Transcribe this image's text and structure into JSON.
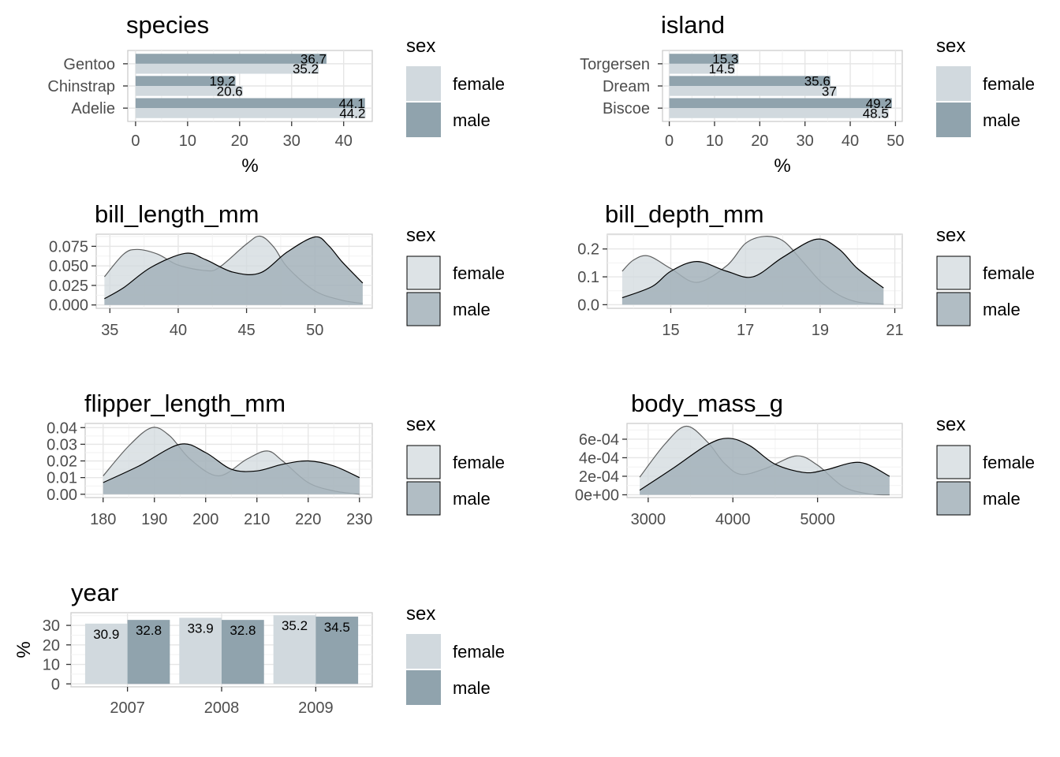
{
  "colors": {
    "female_fill": "#d1d9de",
    "male_fill": "#90a3ad",
    "density_fill": "#a3b2ba",
    "grid_major": "#e6e6e6",
    "grid_minor": "#f2f2f2",
    "panel_border": "#cccccc",
    "line": "#000000",
    "tick_text": "#4d4d4d"
  },
  "legend": {
    "title": "sex",
    "items": [
      "female",
      "male"
    ]
  },
  "chart_data": [
    {
      "id": "species",
      "type": "bar",
      "orientation": "horizontal",
      "title": "species",
      "xlabel": "%",
      "ylabel": "",
      "categories": [
        "Adelie",
        "Chinstrap",
        "Gentoo"
      ],
      "series": [
        {
          "name": "female",
          "values": [
            44.2,
            20.6,
            35.2
          ],
          "labels": [
            "44.2",
            "20.6",
            "35.2"
          ]
        },
        {
          "name": "male",
          "values": [
            44.1,
            19.2,
            36.7
          ],
          "labels": [
            "44.1",
            "19.2",
            "36.7"
          ]
        }
      ],
      "xlim": [
        -1.5,
        45.5
      ],
      "xticks": [
        0,
        10,
        20,
        30,
        40
      ],
      "xtick_labels": [
        "0",
        "10",
        "20",
        "30",
        "40"
      ],
      "grid": true,
      "legend_position": "right"
    },
    {
      "id": "island",
      "type": "bar",
      "orientation": "horizontal",
      "title": "island",
      "xlabel": "%",
      "ylabel": "",
      "categories": [
        "Biscoe",
        "Dream",
        "Torgersen"
      ],
      "series": [
        {
          "name": "female",
          "values": [
            48.5,
            37.0,
            14.5
          ],
          "labels": [
            "48.5",
            "37",
            "14.5"
          ]
        },
        {
          "name": "male",
          "values": [
            49.2,
            35.6,
            15.3
          ],
          "labels": [
            "49.2",
            "35.6",
            "15.3"
          ]
        }
      ],
      "xlim": [
        -1.5,
        51.5
      ],
      "xticks": [
        0,
        10,
        20,
        30,
        40,
        50
      ],
      "xtick_labels": [
        "0",
        "10",
        "20",
        "30",
        "40",
        "50"
      ],
      "grid": true,
      "legend_position": "right"
    },
    {
      "id": "bill_length_mm",
      "type": "area",
      "title": "bill_length_mm",
      "xlabel": "",
      "ylabel": "",
      "xlim": [
        34.0,
        54.2
      ],
      "ylim": [
        -0.0043,
        0.0905
      ],
      "xticks": [
        35,
        40,
        45,
        50
      ],
      "xtick_labels": [
        "35",
        "40",
        "45",
        "50"
      ],
      "yticks": [
        0,
        0.025,
        0.05,
        0.075
      ],
      "ytick_labels": [
        "0.000",
        "0.025",
        "0.050",
        "0.075"
      ],
      "series": [
        {
          "name": "female",
          "x": [
            34.6,
            36,
            37,
            38.5,
            40,
            42,
            43,
            45,
            46,
            47,
            48,
            50,
            52,
            53.5
          ],
          "y": [
            0.036,
            0.065,
            0.071,
            0.065,
            0.051,
            0.044,
            0.048,
            0.078,
            0.088,
            0.074,
            0.048,
            0.018,
            0.006,
            0.002
          ]
        },
        {
          "name": "male",
          "x": [
            34.6,
            36,
            38,
            40.5,
            42,
            44,
            46,
            48,
            50,
            51,
            52,
            53.5
          ],
          "y": [
            0.008,
            0.022,
            0.048,
            0.066,
            0.058,
            0.042,
            0.041,
            0.068,
            0.087,
            0.076,
            0.055,
            0.028
          ]
        }
      ],
      "grid": true,
      "legend_position": "right"
    },
    {
      "id": "bill_depth_mm",
      "type": "area",
      "title": "bill_depth_mm",
      "xlabel": "",
      "ylabel": "",
      "xlim": [
        13.3,
        21.2
      ],
      "ylim": [
        -0.013,
        0.253
      ],
      "xticks": [
        15,
        17,
        19,
        21
      ],
      "xtick_labels": [
        "15",
        "17",
        "19",
        "21"
      ],
      "yticks": [
        0,
        0.1,
        0.2
      ],
      "ytick_labels": [
        "0.0",
        "0.1",
        "0.2"
      ],
      "series": [
        {
          "name": "female",
          "x": [
            13.7,
            14,
            14.4,
            15,
            15.7,
            16.5,
            17,
            17.5,
            18,
            18.5,
            19,
            19.5,
            20,
            20.7
          ],
          "y": [
            0.12,
            0.16,
            0.175,
            0.13,
            0.08,
            0.14,
            0.22,
            0.245,
            0.23,
            0.16,
            0.085,
            0.035,
            0.01,
            0.002
          ]
        },
        {
          "name": "male",
          "x": [
            13.7,
            14.5,
            15,
            15.7,
            16.5,
            17.2,
            18,
            18.9,
            19.5,
            20,
            20.7
          ],
          "y": [
            0.025,
            0.065,
            0.12,
            0.155,
            0.12,
            0.1,
            0.17,
            0.235,
            0.2,
            0.13,
            0.06
          ]
        }
      ],
      "grid": true,
      "legend_position": "right"
    },
    {
      "id": "flipper_length_mm",
      "type": "area",
      "title": "flipper_length_mm",
      "xlabel": "",
      "ylabel": "",
      "xlim": [
        176.5,
        232.5
      ],
      "ylim": [
        -0.002,
        0.0425
      ],
      "xticks": [
        180,
        190,
        200,
        210,
        220,
        230
      ],
      "xtick_labels": [
        "180",
        "190",
        "200",
        "210",
        "220",
        "230"
      ],
      "yticks": [
        0,
        0.01,
        0.02,
        0.03,
        0.04
      ],
      "ytick_labels": [
        "0.00",
        "0.01",
        "0.02",
        "0.03",
        "0.04"
      ],
      "series": [
        {
          "name": "female",
          "x": [
            180,
            185,
            189.5,
            193,
            197,
            202.5,
            208,
            212,
            215,
            220,
            225,
            230
          ],
          "y": [
            0.011,
            0.029,
            0.04,
            0.035,
            0.021,
            0.011,
            0.021,
            0.026,
            0.02,
            0.007,
            0.002,
            0.0
          ]
        },
        {
          "name": "male",
          "x": [
            180,
            187,
            195,
            200,
            205,
            210,
            215,
            220,
            225,
            230
          ],
          "y": [
            0.007,
            0.017,
            0.03,
            0.025,
            0.015,
            0.014,
            0.018,
            0.02,
            0.017,
            0.01
          ]
        }
      ],
      "grid": true,
      "legend_position": "right"
    },
    {
      "id": "body_mass_g",
      "type": "area",
      "title": "body_mass_g",
      "xlabel": "",
      "ylabel": "",
      "xlim": [
        2750,
        6000
      ],
      "ylim": [
        -3e-05,
        0.00077
      ],
      "xticks": [
        3000,
        4000,
        5000
      ],
      "xtick_labels": [
        "3000",
        "4000",
        "5000"
      ],
      "yticks": [
        0,
        0.0002,
        0.0004,
        0.0006
      ],
      "ytick_labels": [
        "0e+00",
        "2e-04",
        "4e-04",
        "6e-04"
      ],
      "series": [
        {
          "name": "female",
          "x": [
            2900,
            3200,
            3450,
            3700,
            3900,
            4100,
            4400,
            4750,
            5000,
            5300,
            5600,
            5850
          ],
          "y": [
            0.00019,
            0.00055,
            0.00074,
            0.00057,
            0.00034,
            0.00022,
            0.00029,
            0.00042,
            0.00032,
            9e-05,
            1e-05,
            0.0
          ]
        },
        {
          "name": "male",
          "x": [
            2900,
            3300,
            3700,
            3950,
            4200,
            4500,
            4850,
            5100,
            5500,
            5850
          ],
          "y": [
            5e-05,
            0.00029,
            0.00054,
            0.00061,
            0.00053,
            0.00033,
            0.00024,
            0.00027,
            0.00035,
            0.0002
          ]
        }
      ],
      "grid": true,
      "legend_position": "right"
    },
    {
      "id": "year",
      "type": "bar",
      "orientation": "vertical",
      "title": "year",
      "xlabel": "",
      "ylabel": "%",
      "categories": [
        "2007",
        "2008",
        "2009"
      ],
      "series": [
        {
          "name": "female",
          "values": [
            30.9,
            33.9,
            35.2
          ],
          "labels": [
            "30.9",
            "33.9",
            "35.2"
          ]
        },
        {
          "name": "male",
          "values": [
            32.8,
            32.8,
            34.5
          ],
          "labels": [
            "32.8",
            "32.8",
            "34.5"
          ]
        }
      ],
      "ylim": [
        -1.5,
        36.5
      ],
      "yticks": [
        0,
        10,
        20,
        30
      ],
      "ytick_labels": [
        "0",
        "10",
        "20",
        "30"
      ],
      "grid": true,
      "legend_position": "right"
    }
  ]
}
